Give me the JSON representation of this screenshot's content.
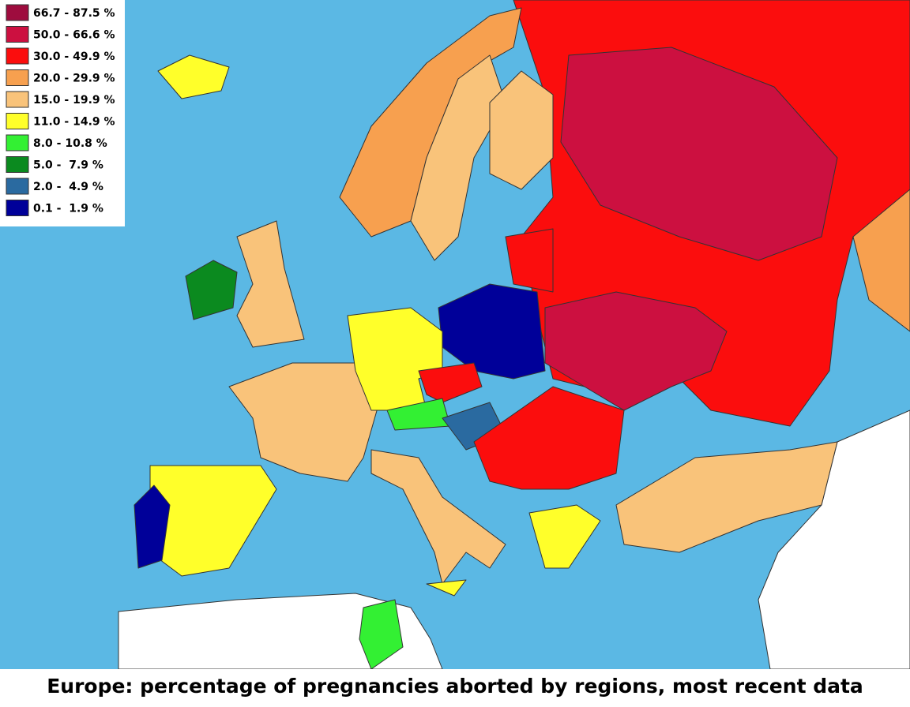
{
  "legend": {
    "items": [
      {
        "label": "66.7 - 87.5 %",
        "color": "#9e0c3e"
      },
      {
        "label": "50.0 - 66.6 %",
        "color": "#cc1040"
      },
      {
        "label": "30.0 - 49.9 %",
        "color": "#fb0d0d"
      },
      {
        "label": "20.0 - 29.9 %",
        "color": "#f7a04f"
      },
      {
        "label": "15.0 - 19.9 %",
        "color": "#f9c37a"
      },
      {
        "label": "11.0 - 14.9 %",
        "color": "#ffff2a"
      },
      {
        "label": "8.0 - 10.8 %",
        "color": "#33f033"
      },
      {
        "label": "5.0 -  7.9 %",
        "color": "#0b8a1f"
      },
      {
        "label": "2.0 -  4.9 %",
        "color": "#2a6aa0"
      },
      {
        "label": "0.1 -  1.9 %",
        "color": "#000099"
      }
    ]
  },
  "title": "Europe:  percentage of pregnancies aborted by regions, most recent data"
}
